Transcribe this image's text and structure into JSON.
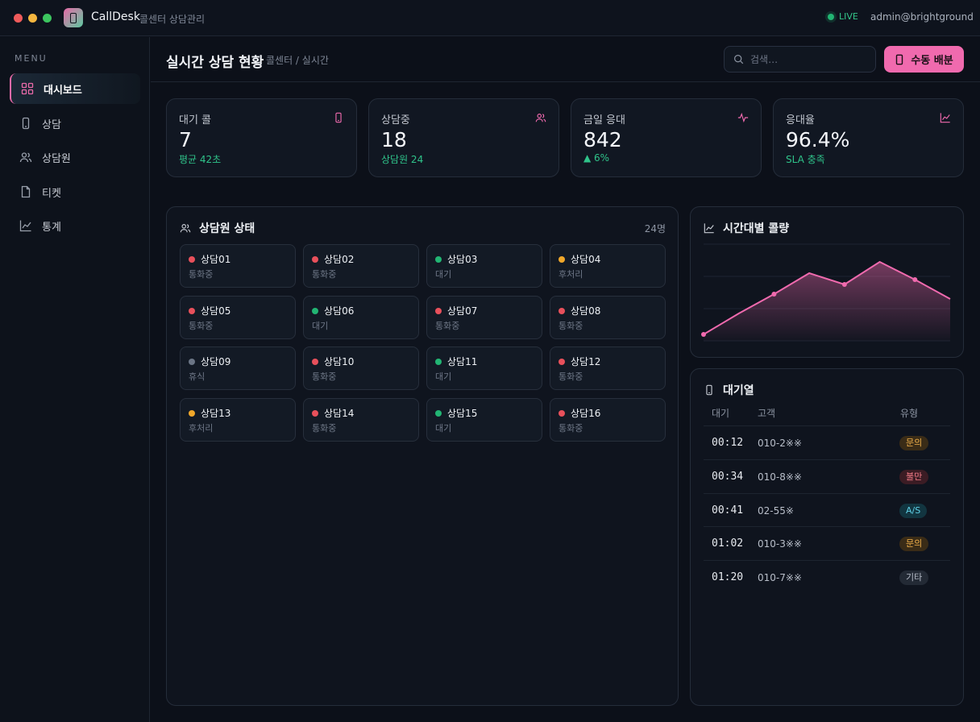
{
  "app": {
    "name": "CallDesk",
    "subtitle": "콜센터 상담관리",
    "status": "LIVE",
    "user": "admin@brightground"
  },
  "sidebar": {
    "menu_label": "MENU",
    "items": [
      {
        "label": "대시보드",
        "icon": "grid-icon",
        "active": true
      },
      {
        "label": "상담",
        "icon": "phone-icon"
      },
      {
        "label": "상담원",
        "icon": "users-icon"
      },
      {
        "label": "티켓",
        "icon": "file-icon"
      },
      {
        "label": "통계",
        "icon": "chart-icon"
      }
    ]
  },
  "header": {
    "title": "실시간 상담 현황",
    "breadcrumb": "콜센터 / 실시간",
    "search_placeholder": "검색…",
    "assign_button": "수동 배분"
  },
  "stats": [
    {
      "label": "대기 콜",
      "value": "7",
      "sub": "평균 42초",
      "icon": "phone-icon"
    },
    {
      "label": "상담중",
      "value": "18",
      "sub": "상담원 24",
      "icon": "users-icon"
    },
    {
      "label": "금일 응대",
      "value": "842",
      "sub": "▲ 6%",
      "icon": "pulse-icon"
    },
    {
      "label": "응대율",
      "value": "96.4%",
      "sub": "SLA 충족",
      "icon": "chart-icon"
    }
  ],
  "agents_panel": {
    "title": "상담원 상태",
    "count": "24명",
    "agents": [
      {
        "name": "상담01",
        "status": "통화중",
        "color": "#e8505b"
      },
      {
        "name": "상담02",
        "status": "통화중",
        "color": "#e8505b"
      },
      {
        "name": "상담03",
        "status": "대기",
        "color": "#22b573"
      },
      {
        "name": "상담04",
        "status": "후처리",
        "color": "#f0a72a"
      },
      {
        "name": "상담05",
        "status": "통화중",
        "color": "#e8505b"
      },
      {
        "name": "상담06",
        "status": "대기",
        "color": "#22b573"
      },
      {
        "name": "상담07",
        "status": "통화중",
        "color": "#e8505b"
      },
      {
        "name": "상담08",
        "status": "통화중",
        "color": "#e8505b"
      },
      {
        "name": "상담09",
        "status": "휴식",
        "color": "#6b7585"
      },
      {
        "name": "상담10",
        "status": "통화중",
        "color": "#e8505b"
      },
      {
        "name": "상담11",
        "status": "대기",
        "color": "#22b573"
      },
      {
        "name": "상담12",
        "status": "통화중",
        "color": "#e8505b"
      },
      {
        "name": "상담13",
        "status": "후처리",
        "color": "#f0a72a"
      },
      {
        "name": "상담14",
        "status": "통화중",
        "color": "#e8505b"
      },
      {
        "name": "상담15",
        "status": "대기",
        "color": "#22b573"
      },
      {
        "name": "상담16",
        "status": "통화중",
        "color": "#e8505b"
      }
    ]
  },
  "volume_panel": {
    "title": "시간대별 콜량"
  },
  "chart_data": {
    "type": "area",
    "title": "시간대별 콜량",
    "x": [
      1,
      2,
      3,
      4,
      5,
      6,
      7,
      8
    ],
    "values": [
      4,
      17,
      29,
      42,
      35,
      49,
      38,
      26
    ],
    "ylim": [
      0,
      60
    ],
    "grid": true,
    "color": "#f06aae"
  },
  "queue_panel": {
    "title": "대기열",
    "columns": [
      "대기",
      "고객",
      "유형"
    ],
    "rows": [
      {
        "wait": "00:12",
        "customer": "010-2※※",
        "type": "문의",
        "tag_color": "#f0b04a",
        "tag_bg": "#3a2c17"
      },
      {
        "wait": "00:34",
        "customer": "010-8※※",
        "type": "불만",
        "tag_color": "#f07a86",
        "tag_bg": "#3b1c24"
      },
      {
        "wait": "00:41",
        "customer": "02-55※",
        "type": "A/S",
        "tag_color": "#5fd0e6",
        "tag_bg": "#123540"
      },
      {
        "wait": "01:02",
        "customer": "010-3※※",
        "type": "문의",
        "tag_color": "#f0b04a",
        "tag_bg": "#3a2c17"
      },
      {
        "wait": "01:20",
        "customer": "010-7※※",
        "type": "기타",
        "tag_color": "#b7bdc8",
        "tag_bg": "#232a35"
      }
    ]
  }
}
